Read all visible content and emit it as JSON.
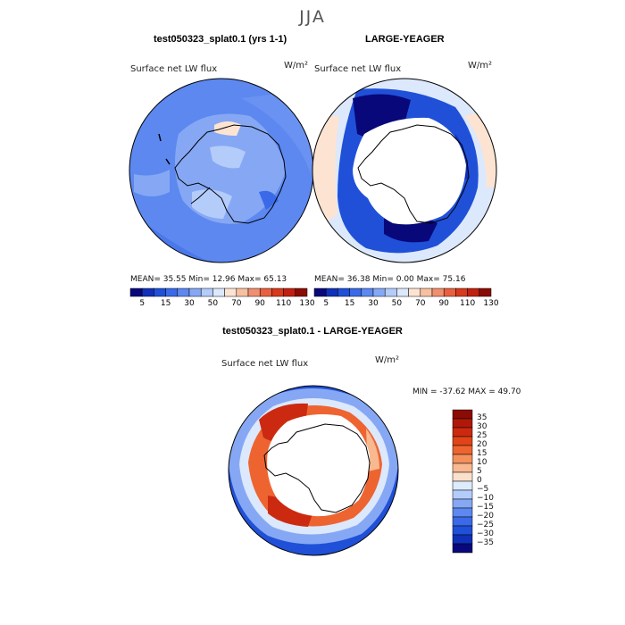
{
  "season": "JJA",
  "panel_left": {
    "case": "test050323_splat0.1 (yrs 1-1)",
    "variable": "Surface net LW flux",
    "units": "W/m²",
    "stats": "MEAN=  35.55  Min=  12.96  Max=  65.13"
  },
  "panel_right": {
    "case": "LARGE-YEAGER",
    "variable": "Surface net LW flux",
    "units": "W/m²",
    "stats": "MEAN=  36.38  Min=   0.00  Max=  75.16"
  },
  "panel_diff": {
    "case": "test050323_splat0.1 - LARGE-YEAGER",
    "variable": "Surface net LW flux",
    "units": "W/m²",
    "stats": "MIN = -37.62 MAX =  49.70"
  },
  "colorbar_top": {
    "tick_labels": [
      "5",
      "15",
      "30",
      "50",
      "70",
      "90",
      "110",
      "130"
    ],
    "colors": [
      "#08087a",
      "#1030b8",
      "#2050d8",
      "#3a6ae8",
      "#5c88f0",
      "#86a8f4",
      "#b4ccfa",
      "#dce8fc",
      "#fde4d2",
      "#f8c0a0",
      "#f09070",
      "#e86040",
      "#d83a1c",
      "#c02010",
      "#8a0c04"
    ]
  },
  "colorbar_diff": {
    "tick_labels": [
      "35",
      "30",
      "25",
      "20",
      "15",
      "10",
      "5",
      "0",
      "−5",
      "−10",
      "−15",
      "−20",
      "−25",
      "−30",
      "−35"
    ],
    "colors": [
      "#8a0c04",
      "#b01808",
      "#cc2a10",
      "#e04418",
      "#ee6430",
      "#f4905c",
      "#f8b890",
      "#fbe0cc",
      "#dcecfc",
      "#b4ccfa",
      "#86a8f4",
      "#5c88f0",
      "#3a6ae8",
      "#2050d8",
      "#1030b8",
      "#08087a"
    ]
  }
}
